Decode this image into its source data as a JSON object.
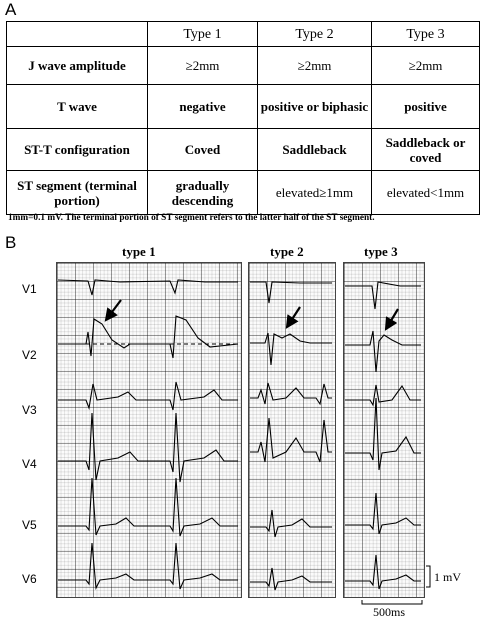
{
  "panel_a_label": "A",
  "panel_b_label": "B",
  "table": {
    "headers": [
      "",
      "Type 1",
      "Type 2",
      "Type 3"
    ],
    "rows": [
      {
        "label": "J wave amplitude",
        "cells": [
          "≥2mm",
          "≥2mm",
          "≥2mm"
        ],
        "bold": false
      },
      {
        "label": "T wave",
        "cells": [
          "negative",
          "positive or biphasic",
          "positive"
        ],
        "bold": true
      },
      {
        "label": "ST-T configuration",
        "cells": [
          "Coved",
          "Saddleback",
          "Saddleback or coved"
        ],
        "bold": true
      },
      {
        "label": "ST segment (terminal portion)",
        "cells": [
          "gradually descending",
          "elevated≥1mm",
          "elevated<1mm"
        ],
        "bold": false
      }
    ]
  },
  "footnote": "1mm=0.1 mV.  The terminal portion of ST segment refers to the latter half of the ST segment.",
  "ecg": {
    "strip_titles": [
      "type 1",
      "type 2",
      "type 3"
    ],
    "leads": [
      "V1",
      "V2",
      "V3",
      "V4",
      "V5",
      "V6"
    ],
    "calibration_label": "1 mV",
    "timescale_label": "500ms"
  }
}
